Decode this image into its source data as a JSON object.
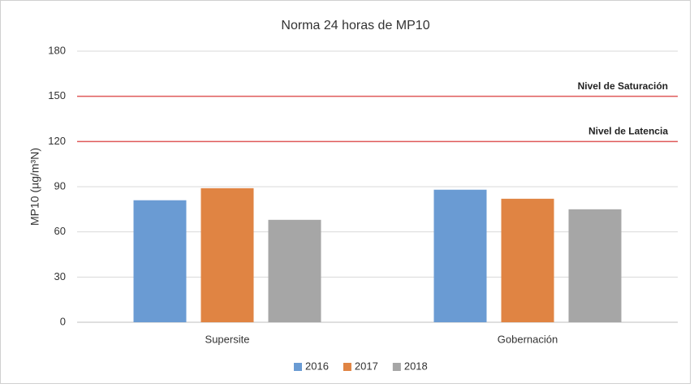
{
  "chart_data": {
    "type": "bar",
    "title": "Norma 24 horas de MP10",
    "y_label": "MP10 (µg/m³N)",
    "categories": [
      "Supersite",
      "Gobernación"
    ],
    "series": [
      {
        "name": "2016",
        "color": "#6a9bd3",
        "values": [
          81,
          88
        ]
      },
      {
        "name": "2017",
        "color": "#e08443",
        "values": [
          89,
          82
        ]
      },
      {
        "name": "2018",
        "color": "#a6a6a6",
        "values": [
          68,
          75
        ]
      }
    ],
    "ylim": [
      0,
      180
    ],
    "yticks": [
      0,
      30,
      60,
      90,
      120,
      150,
      180
    ],
    "grid": true,
    "reference_lines": [
      {
        "value": 150,
        "label": "Nivel de Saturación",
        "color": "#e05a5a"
      },
      {
        "value": 120,
        "label": "Nivel de Latencia",
        "color": "#e05a5a"
      }
    ],
    "legend": "bottom"
  }
}
